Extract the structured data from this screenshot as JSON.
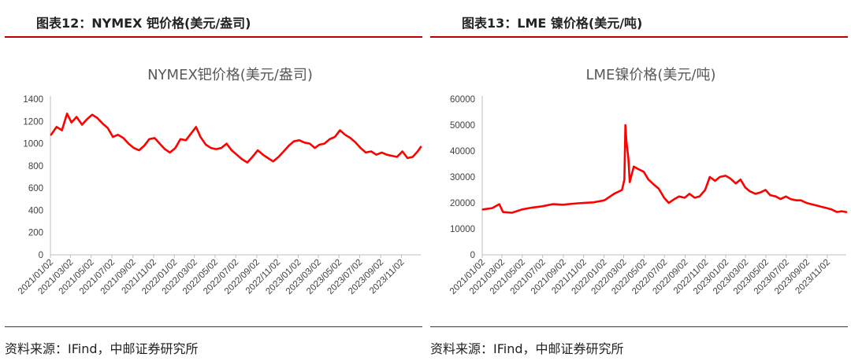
{
  "charts": {
    "left": {
      "header": "图表12：NYMEX 钯价格(美元/盎司)",
      "source": "资料来源：IFind，中邮证券研究所"
    },
    "right": {
      "header": "图表13：LME 镍价格(美元/吨)",
      "source": "资料来源：IFind，中邮证券研究所"
    }
  },
  "chart_data": [
    {
      "type": "line",
      "title": "NYMEX钯价格(美元/盎司)",
      "xlabel": "",
      "ylabel": "",
      "ylim": [
        0,
        1400
      ],
      "yticks": [
        0,
        200,
        400,
        600,
        800,
        1000,
        1200,
        1400
      ],
      "xlim": [
        "2021/01/02",
        "2023/12/29"
      ],
      "xticks": [
        "2021/01/02",
        "2021/03/02",
        "2021/05/02",
        "2021/07/02",
        "2021/09/02",
        "2021/11/02",
        "2022/01/02",
        "2022/03/02",
        "2022/05/02",
        "2022/07/02",
        "2022/09/02",
        "2022/11/02",
        "2023/01/02",
        "2023/03/02",
        "2023/05/02",
        "2023/07/02",
        "2023/09/02",
        "2023/11/02"
      ],
      "grid": false,
      "color": "#ff0000",
      "series": [
        {
          "x": [
            "2021/01/04",
            "2021/01/20",
            "2021/02/05",
            "2021/02/20",
            "2021/03/05",
            "2021/03/20",
            "2021/04/05",
            "2021/04/20",
            "2021/05/05",
            "2021/05/20",
            "2021/06/05",
            "2021/06/20",
            "2021/07/05",
            "2021/07/20",
            "2021/08/05",
            "2021/08/20",
            "2021/09/05",
            "2021/09/20",
            "2021/10/05",
            "2021/10/20",
            "2021/11/05",
            "2021/11/20",
            "2021/12/05",
            "2021/12/20",
            "2022/01/05",
            "2022/01/20",
            "2022/02/05",
            "2022/02/20",
            "2022/03/07",
            "2022/03/20",
            "2022/04/05",
            "2022/04/20",
            "2022/05/05",
            "2022/05/20",
            "2022/06/05",
            "2022/06/20",
            "2022/07/05",
            "2022/07/20",
            "2022/08/05",
            "2022/08/20",
            "2022/09/05",
            "2022/09/20",
            "2022/10/05",
            "2022/10/20",
            "2022/11/05",
            "2022/11/20",
            "2022/12/05",
            "2022/12/20",
            "2023/01/05",
            "2023/01/20",
            "2023/02/05",
            "2023/02/20",
            "2023/03/05",
            "2023/03/20",
            "2023/04/05",
            "2023/04/20",
            "2023/05/05",
            "2023/05/20",
            "2023/06/05",
            "2023/06/20",
            "2023/07/05",
            "2023/07/20",
            "2023/08/05",
            "2023/08/20",
            "2023/09/05",
            "2023/09/20",
            "2023/10/05",
            "2023/10/20",
            "2023/11/05",
            "2023/11/20",
            "2023/12/05",
            "2023/12/20",
            "2023/12/29"
          ],
          "values": [
            1080,
            1150,
            1120,
            1270,
            1190,
            1240,
            1170,
            1220,
            1260,
            1230,
            1180,
            1140,
            1060,
            1080,
            1050,
            1000,
            960,
            940,
            980,
            1040,
            1050,
            1000,
            950,
            920,
            960,
            1040,
            1030,
            1090,
            1150,
            1060,
            990,
            960,
            950,
            960,
            1000,
            940,
            900,
            860,
            830,
            880,
            940,
            900,
            870,
            840,
            880,
            930,
            980,
            1020,
            1030,
            1010,
            1000,
            960,
            990,
            1000,
            1040,
            1060,
            1120,
            1080,
            1050,
            1010,
            960,
            920,
            930,
            900,
            920,
            900,
            890,
            880,
            930,
            870,
            880,
            930,
            970
          ]
        }
      ]
    },
    {
      "type": "line",
      "title": "LME镍价格(美元/吨)",
      "xlabel": "",
      "ylabel": "",
      "ylim": [
        0,
        60000
      ],
      "yticks": [
        0,
        10000,
        20000,
        30000,
        40000,
        50000,
        60000
      ],
      "xlim": [
        "2021/01/02",
        "2023/12/29"
      ],
      "xticks": [
        "2021/01/02",
        "2021/03/02",
        "2021/05/02",
        "2021/07/02",
        "2021/09/02",
        "2021/11/02",
        "2022/01/02",
        "2022/03/02",
        "2022/05/02",
        "2022/07/02",
        "2022/09/02",
        "2022/11/02",
        "2023/01/02",
        "2023/03/02",
        "2023/05/02",
        "2023/07/02",
        "2023/09/02",
        "2023/11/02"
      ],
      "grid": false,
      "color": "#ff0000",
      "series": [
        {
          "x": [
            "2021/01/04",
            "2021/02/01",
            "2021/02/22",
            "2021/03/05",
            "2021/04/01",
            "2021/05/01",
            "2021/06/01",
            "2021/07/01",
            "2021/08/01",
            "2021/09/01",
            "2021/10/01",
            "2021/11/01",
            "2021/12/01",
            "2022/01/03",
            "2022/02/01",
            "2022/02/25",
            "2022/03/04",
            "2022/03/07",
            "2022/03/08",
            "2022/03/10",
            "2022/03/16",
            "2022/03/20",
            "2022/04/01",
            "2022/04/15",
            "2022/05/01",
            "2022/05/15",
            "2022/06/01",
            "2022/06/15",
            "2022/07/01",
            "2022/07/15",
            "2022/08/01",
            "2022/08/15",
            "2022/09/01",
            "2022/09/15",
            "2022/10/01",
            "2022/10/15",
            "2022/11/01",
            "2022/11/15",
            "2022/12/01",
            "2022/12/15",
            "2023/01/01",
            "2023/01/15",
            "2023/02/01",
            "2023/02/15",
            "2023/03/01",
            "2023/03/15",
            "2023/04/01",
            "2023/04/15",
            "2023/05/01",
            "2023/05/15",
            "2023/06/01",
            "2023/06/15",
            "2023/07/01",
            "2023/07/15",
            "2023/08/01",
            "2023/08/15",
            "2023/09/01",
            "2023/09/15",
            "2023/10/01",
            "2023/10/15",
            "2023/11/01",
            "2023/11/15",
            "2023/12/01",
            "2023/12/15",
            "2023/12/29"
          ],
          "values": [
            17500,
            18000,
            19500,
            16500,
            16200,
            17500,
            18200,
            18700,
            19500,
            19300,
            19700,
            20000,
            20200,
            21000,
            23500,
            25000,
            29000,
            50000,
            48000,
            44000,
            37000,
            28000,
            34000,
            33000,
            32000,
            29000,
            27000,
            25500,
            22000,
            20000,
            21500,
            22500,
            22000,
            23500,
            22000,
            22500,
            25000,
            30000,
            28500,
            30000,
            30500,
            29500,
            27500,
            29000,
            26000,
            24500,
            23500,
            24000,
            25000,
            23000,
            22500,
            21500,
            22500,
            21500,
            21000,
            21000,
            20000,
            19500,
            19000,
            18500,
            18000,
            17500,
            16500,
            16800,
            16500
          ]
        }
      ]
    }
  ]
}
